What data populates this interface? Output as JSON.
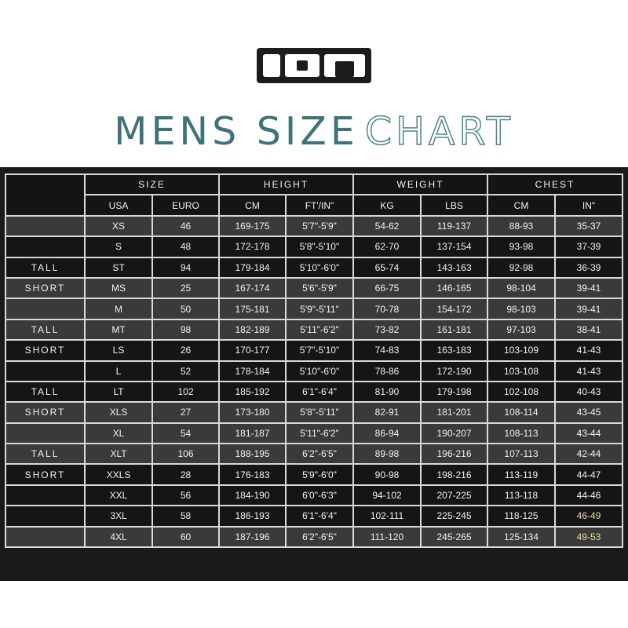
{
  "brand": {
    "logo_text": "ION"
  },
  "title": {
    "part1": "MENS SIZE",
    "part2": "CHART",
    "color": "#3f7377"
  },
  "table": {
    "groups": [
      "SIZE",
      "HEIGHT",
      "WEIGHT",
      "CHEST"
    ],
    "subheaders": [
      "USA",
      "EURO",
      "CM",
      "FT'/IN\"",
      "KG",
      "LBS",
      "CM",
      "IN\""
    ],
    "highlight_color": "#e9dc9c",
    "rows": [
      {
        "label": "",
        "shade": "gray",
        "cells": [
          "XS",
          "46",
          "169-175",
          "5'7\"-5'9\"",
          "54-62",
          "119-137",
          "88-93",
          "35-37"
        ]
      },
      {
        "label": "",
        "shade": "dark",
        "cells": [
          "S",
          "48",
          "172-178",
          "5'8\"-5'10\"",
          "62-70",
          "137-154",
          "93-98",
          "37-39"
        ]
      },
      {
        "label": "TALL",
        "shade": "dark",
        "cells": [
          "ST",
          "94",
          "179-184",
          "5'10\"-6'0\"",
          "65-74",
          "143-163",
          "92-98",
          "36-39"
        ]
      },
      {
        "label": "SHORT",
        "shade": "gray",
        "cells": [
          "MS",
          "25",
          "167-174",
          "5'6\"-5'9\"",
          "66-75",
          "146-165",
          "98-104",
          "39-41"
        ]
      },
      {
        "label": "",
        "shade": "gray",
        "cells": [
          "M",
          "50",
          "175-181",
          "5'9\"-5'11\"",
          "70-78",
          "154-172",
          "98-103",
          "39-41"
        ]
      },
      {
        "label": "TALL",
        "shade": "gray",
        "cells": [
          "MT",
          "98",
          "182-189",
          "5'11\"-6'2\"",
          "73-82",
          "161-181",
          "97-103",
          "38-41"
        ]
      },
      {
        "label": "SHORT",
        "shade": "dark",
        "cells": [
          "LS",
          "26",
          "170-177",
          "5'7\"-5'10\"",
          "74-83",
          "163-183",
          "103-109",
          "41-43"
        ]
      },
      {
        "label": "",
        "shade": "dark",
        "cells": [
          "L",
          "52",
          "178-184",
          "5'10\"-6'0\"",
          "78-86",
          "172-190",
          "103-108",
          "41-43"
        ]
      },
      {
        "label": "TALL",
        "shade": "dark",
        "cells": [
          "LT",
          "102",
          "185-192",
          "6'1\"-6'4\"",
          "81-90",
          "179-198",
          "102-108",
          "40-43"
        ]
      },
      {
        "label": "SHORT",
        "shade": "gray",
        "cells": [
          "XLS",
          "27",
          "173-180",
          "5'8\"-5'11\"",
          "82-91",
          "181-201",
          "108-114",
          "43-45"
        ]
      },
      {
        "label": "",
        "shade": "gray",
        "cells": [
          "XL",
          "54",
          "181-187",
          "5'11\"-6'2\"",
          "86-94",
          "190-207",
          "108-113",
          "43-44"
        ]
      },
      {
        "label": "TALL",
        "shade": "gray",
        "cells": [
          "XLT",
          "106",
          "188-195",
          "6'2\"-6'5\"",
          "89-98",
          "196-216",
          "107-113",
          "42-44"
        ]
      },
      {
        "label": "SHORT",
        "shade": "dark",
        "cells": [
          "XXLS",
          "28",
          "176-183",
          "5'9\"-6'0\"",
          "90-98",
          "198-216",
          "113-119",
          "44-47"
        ]
      },
      {
        "label": "",
        "shade": "dark",
        "cells": [
          "XXL",
          "56",
          "184-190",
          "6'0\"-6'3\"",
          "94-102",
          "207-225",
          "113-118",
          "44-46"
        ]
      },
      {
        "label": "",
        "shade": "dark",
        "cells": [
          "3XL",
          "58",
          "186-193",
          "6'1\"-6'4\"",
          "102-111",
          "225-245",
          "118-125",
          "46-49"
        ],
        "highlight_last": true
      },
      {
        "label": "",
        "shade": "gray",
        "cells": [
          "4XL",
          "60",
          "187-196",
          "6'2\"-6'5\"",
          "111-120",
          "245-265",
          "125-134",
          "49-53"
        ],
        "highlight_last": true
      }
    ]
  }
}
